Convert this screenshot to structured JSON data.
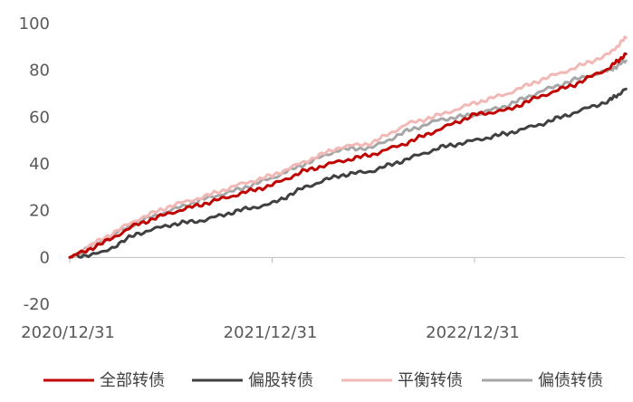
{
  "chart_data": {
    "type": "line",
    "title": "",
    "xlabel": "",
    "ylabel": "",
    "ylim": [
      -20,
      100
    ],
    "yticks": [
      -20,
      0,
      20,
      40,
      60,
      80,
      100
    ],
    "xticks": [
      "2020/12/31",
      "2021/12/31",
      "2022/12/31"
    ],
    "x": [
      "2020/12/31",
      "2021/02/28",
      "2021/04/30",
      "2021/06/30",
      "2021/08/31",
      "2021/10/31",
      "2021/12/31",
      "2022/02/28",
      "2022/04/30",
      "2022/06/30",
      "2022/08/31",
      "2022/10/31",
      "2022/12/31",
      "2023/02/28",
      "2023/04/30",
      "2023/06/30",
      "2023/08/31",
      "2023/09/30"
    ],
    "series": [
      {
        "name": "全部转债",
        "color": "#C00000",
        "values": [
          0,
          6,
          14,
          19,
          23,
          27,
          31,
          37,
          41,
          44,
          49,
          55,
          61,
          63,
          69,
          74,
          81,
          87
        ]
      },
      {
        "name": "偏股转债",
        "color": "#404040",
        "values": [
          0,
          2,
          10,
          14,
          16,
          20,
          23,
          30,
          35,
          37,
          42,
          47,
          50,
          53,
          57,
          62,
          67,
          72
        ]
      },
      {
        "name": "平衡转债",
        "color": "#F2B8B5",
        "values": [
          0,
          8,
          16,
          22,
          26,
          31,
          35,
          41,
          47,
          49,
          57,
          61,
          66,
          70,
          76,
          81,
          87,
          94
        ]
      },
      {
        "name": "偏债转债",
        "color": "#A6A6A6",
        "values": [
          0,
          7,
          15,
          20,
          25,
          29,
          34,
          40,
          46,
          47,
          54,
          59,
          61,
          65,
          71,
          76,
          80,
          84
        ]
      }
    ],
    "grid": false,
    "legend": "bottom"
  }
}
